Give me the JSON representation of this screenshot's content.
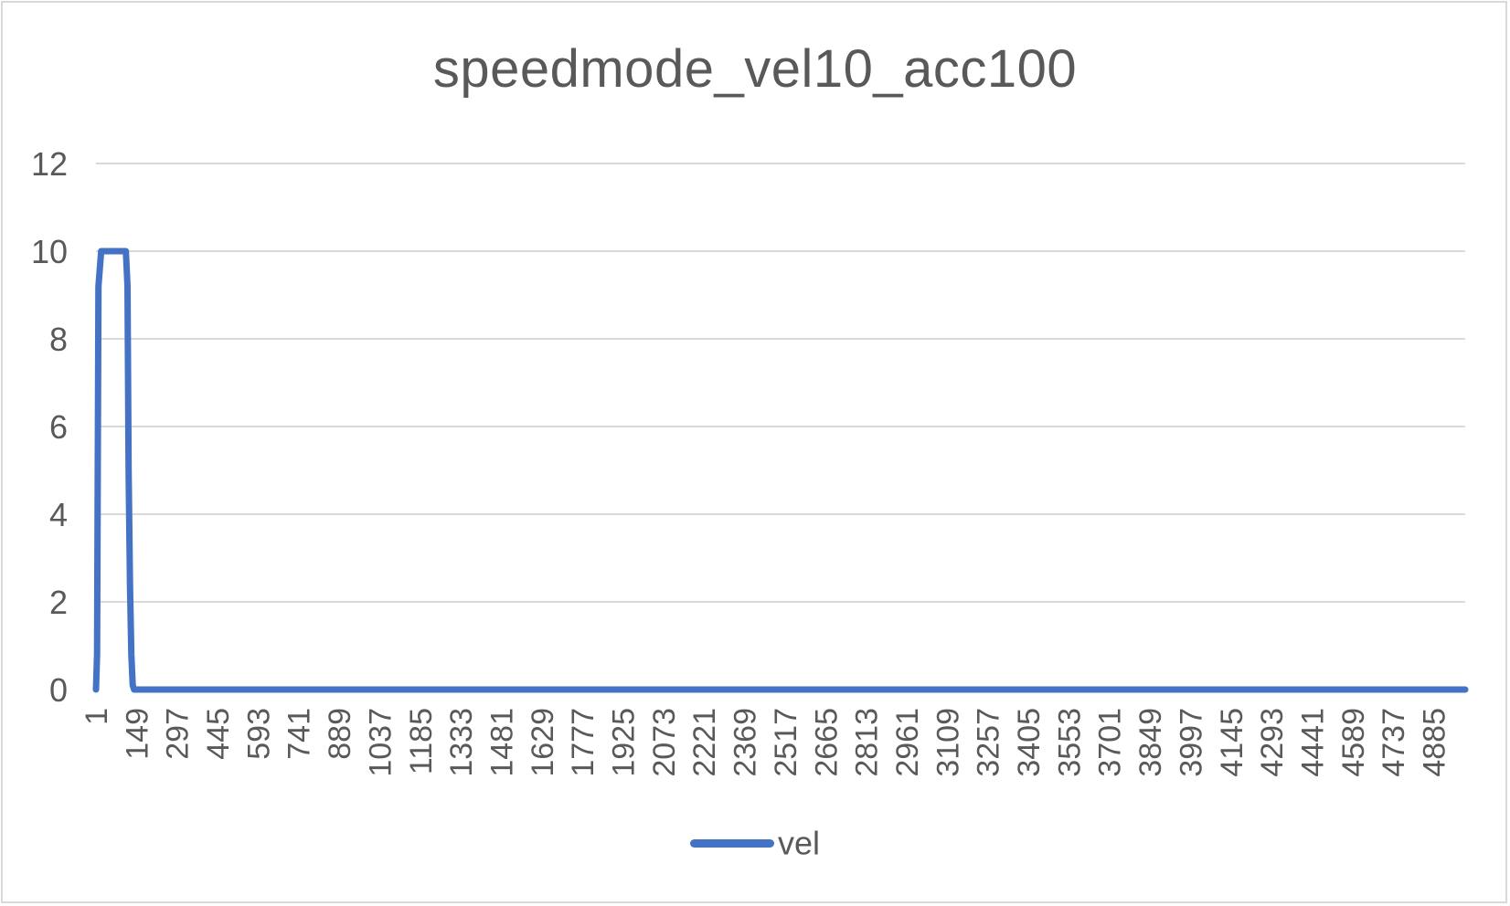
{
  "chart_data": {
    "type": "line",
    "title": "speedmode_vel10_acc100",
    "xlabel": "",
    "ylabel": "",
    "ylim": [
      0,
      12
    ],
    "yticks": [
      "0",
      "2",
      "4",
      "6",
      "8",
      "10",
      "12"
    ],
    "xlim": [
      1,
      5000
    ],
    "xticks": [
      "1",
      "149",
      "297",
      "445",
      "593",
      "741",
      "889",
      "1037",
      "1185",
      "1333",
      "1481",
      "1629",
      "1777",
      "1925",
      "2073",
      "2221",
      "2369",
      "2517",
      "2665",
      "2813",
      "2961",
      "3109",
      "3257",
      "3405",
      "3553",
      "3701",
      "3849",
      "3997",
      "4145",
      "4293",
      "4441",
      "4589",
      "4737",
      "4885"
    ],
    "grid": true,
    "legend_position": "bottom",
    "series": [
      {
        "name": "vel",
        "color": "#4472c4",
        "x": [
          1,
          5,
          10,
          20,
          40,
          60,
          80,
          100,
          110,
          116,
          120,
          125,
          130,
          135,
          140,
          5000
        ],
        "y": [
          0,
          0.8,
          9.2,
          10,
          10,
          10,
          10,
          10,
          10,
          9.2,
          5,
          2.4,
          0.8,
          0.1,
          0,
          0
        ]
      }
    ]
  }
}
